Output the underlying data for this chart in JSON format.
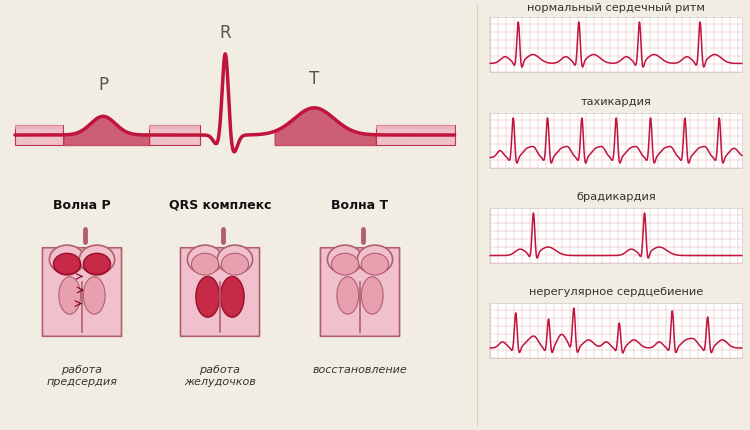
{
  "bg_color": "#f2ede2",
  "ecg_color": "#c0143c",
  "ecg_color_light": "#e8a0b0",
  "grid_color": "#e0a0a8",
  "text_color": "#333333",
  "label_color": "#222222",
  "title_labels": [
    "нормальный сердечный ритм",
    "тахикардия",
    "брадикардия",
    "нерегулярное сердцебиение"
  ],
  "wave_labels": [
    "Волна P",
    "QRS комплекс",
    "Волна T"
  ],
  "bottom_labels_line1": [
    "работа",
    "работа",
    "восстановление"
  ],
  "bottom_labels_line2": [
    "предсердия",
    "желудочков",
    ""
  ],
  "P_label": "P",
  "R_label": "R",
  "T_label": "T",
  "band_color_light": "#f0c0c8",
  "band_color_dark": "#c03050",
  "band_fill_color": "#e8b0bc",
  "heart_outer": "#f0c0cc",
  "heart_border": "#b06070",
  "heart_inner": "#e090a0",
  "heart_dark": "#c01030",
  "panel_bg": "#ffffff",
  "panel_border": "#cccccc"
}
